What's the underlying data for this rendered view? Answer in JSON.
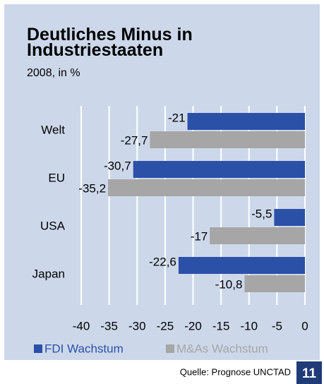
{
  "chart_data": {
    "type": "barh",
    "title": "Deutliches Minus in Industriestaaten",
    "subtitle": "2008, in %",
    "source": "Quelle: Prognose UNCTAD",
    "page_number": "11",
    "categories": [
      "Welt",
      "EU",
      "USA",
      "Japan"
    ],
    "series": [
      {
        "name": "FDI Wachstum",
        "color": "#2b50a8",
        "values": [
          -21,
          -30.7,
          -5.5,
          -22.6
        ],
        "value_labels": [
          "-21",
          "-30,7",
          "-5,5",
          "-22,6"
        ]
      },
      {
        "name": "M&As Wachstum",
        "color": "#a6a6a6",
        "values": [
          -27.7,
          -35.2,
          -17,
          -10.8
        ],
        "value_labels": [
          "-27,7",
          "-35,2",
          "-17",
          "-10,8"
        ]
      }
    ],
    "xlim": [
      -40,
      0
    ],
    "xticks": [
      -40,
      -35,
      -30,
      -25,
      -20,
      -15,
      -10,
      -5,
      0
    ],
    "grid": true
  }
}
